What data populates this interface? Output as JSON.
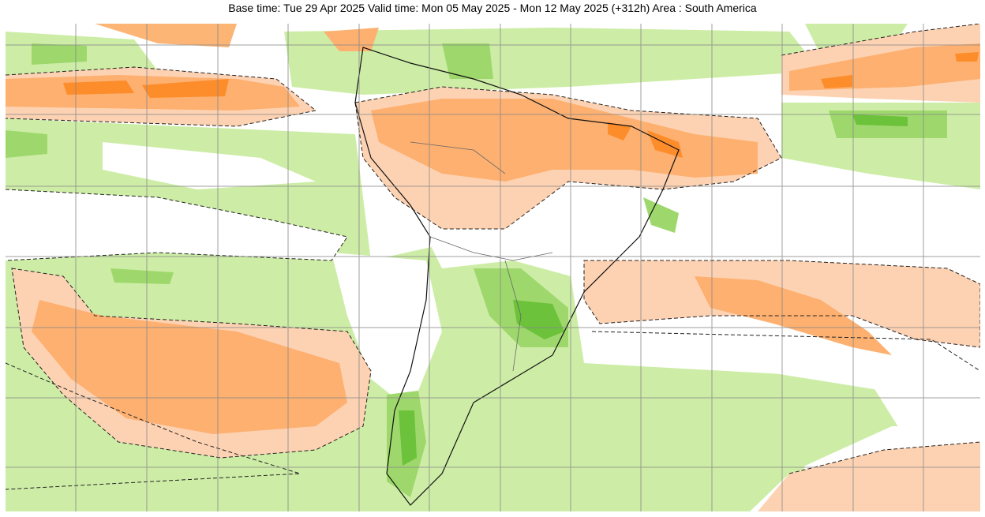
{
  "title": "Base time: Tue 29 Apr 2025 Valid time: Mon 05 May 2025 - Mon 12 May 2025 (+312h) Area : South America"
}
